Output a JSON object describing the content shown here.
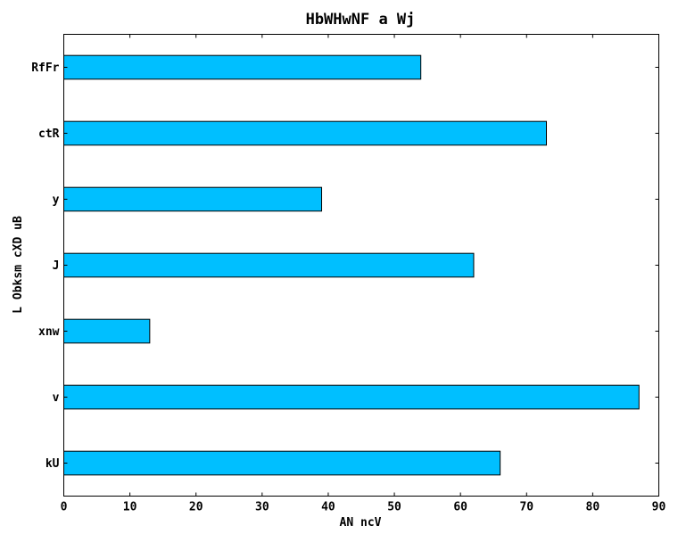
{
  "chart_data": {
    "type": "bar",
    "orientation": "horizontal",
    "title": "HbWHwNF  a Wj",
    "xlabel": "AN  ncV",
    "ylabel": "L Obksm cXD uB",
    "categories": [
      "kU",
      "v",
      "xnw",
      "J",
      "y",
      "ctR",
      "RfFr"
    ],
    "values": [
      66,
      87,
      13,
      62,
      39,
      73,
      54
    ],
    "xlim": [
      0,
      90
    ],
    "xticks": [
      0,
      10,
      20,
      30,
      40,
      50,
      60,
      70,
      80,
      90
    ],
    "grid": false,
    "bar_color": "#00bfff"
  }
}
